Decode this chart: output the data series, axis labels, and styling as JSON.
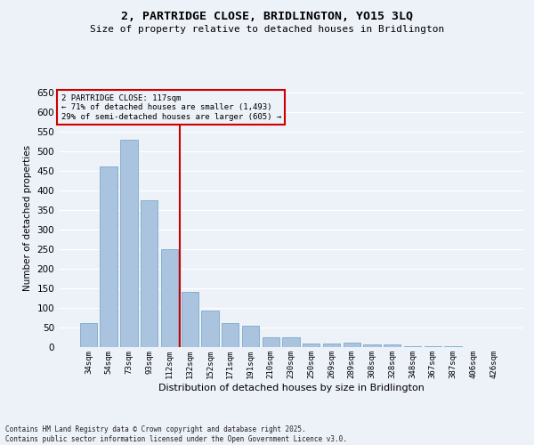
{
  "title_line1": "2, PARTRIDGE CLOSE, BRIDLINGTON, YO15 3LQ",
  "title_line2": "Size of property relative to detached houses in Bridlington",
  "xlabel": "Distribution of detached houses by size in Bridlington",
  "ylabel": "Number of detached properties",
  "categories": [
    "34sqm",
    "54sqm",
    "73sqm",
    "93sqm",
    "112sqm",
    "132sqm",
    "152sqm",
    "171sqm",
    "191sqm",
    "210sqm",
    "230sqm",
    "250sqm",
    "269sqm",
    "289sqm",
    "308sqm",
    "328sqm",
    "348sqm",
    "367sqm",
    "387sqm",
    "406sqm",
    "426sqm"
  ],
  "values": [
    62,
    463,
    530,
    375,
    250,
    142,
    93,
    62,
    55,
    25,
    25,
    10,
    10,
    12,
    6,
    7,
    3,
    2,
    2,
    1,
    1
  ],
  "bar_color": "#aac4df",
  "bar_edge_color": "#7aaaca",
  "bg_color": "#edf1f8",
  "grid_color": "#ffffff",
  "vline_x": 4.5,
  "vline_color": "#cc0000",
  "annotation_text": "2 PARTRIDGE CLOSE: 117sqm\n← 71% of detached houses are smaller (1,493)\n29% of semi-detached houses are larger (605) →",
  "annotation_box_color": "#cc0000",
  "ylim": [
    0,
    660
  ],
  "yticks": [
    0,
    50,
    100,
    150,
    200,
    250,
    300,
    350,
    400,
    450,
    500,
    550,
    600,
    650
  ],
  "footer_line1": "Contains HM Land Registry data © Crown copyright and database right 2025.",
  "footer_line2": "Contains public sector information licensed under the Open Government Licence v3.0."
}
